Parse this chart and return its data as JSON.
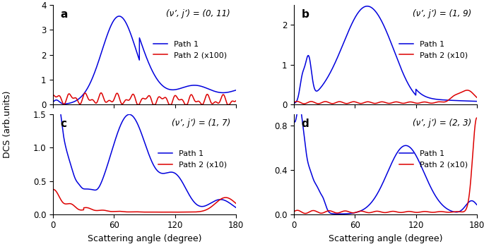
{
  "title": "",
  "xlabel": "Scattering angle (degree)",
  "ylabel": "DCS (arb.units)",
  "blue_color": "#0000dd",
  "red_color": "#dd0000",
  "panels": [
    {
      "label": "a",
      "subtitle": "(ν’, j’) = (0, 11)",
      "legend1": "Path 1",
      "legend2": "Path 2 (x100)",
      "ylim": [
        0,
        4
      ],
      "yticks": [
        0,
        1,
        2,
        3,
        4
      ]
    },
    {
      "label": "b",
      "subtitle": "(ν’, j’) = (1, 9)",
      "legend1": "Path 1",
      "legend2": "Path 2 (x10)",
      "ylim": [
        0,
        2.5
      ],
      "yticks": [
        0,
        1,
        2
      ]
    },
    {
      "label": "c",
      "subtitle": "(ν’, j’) = (1, 7)",
      "legend1": "Path 1",
      "legend2": "Path 2 (x10)",
      "ylim": [
        0,
        1.5
      ],
      "yticks": [
        0.0,
        0.5,
        1.0,
        1.5
      ]
    },
    {
      "label": "d",
      "subtitle": "(ν’, j’) = (2, 3)",
      "legend1": "Path 1",
      "legend2": "Path 2 (x10)",
      "ylim": [
        0,
        0.9
      ],
      "yticks": [
        0.0,
        0.4,
        0.8
      ]
    }
  ],
  "figsize": [
    6.85,
    3.53
  ],
  "dpi": 100
}
